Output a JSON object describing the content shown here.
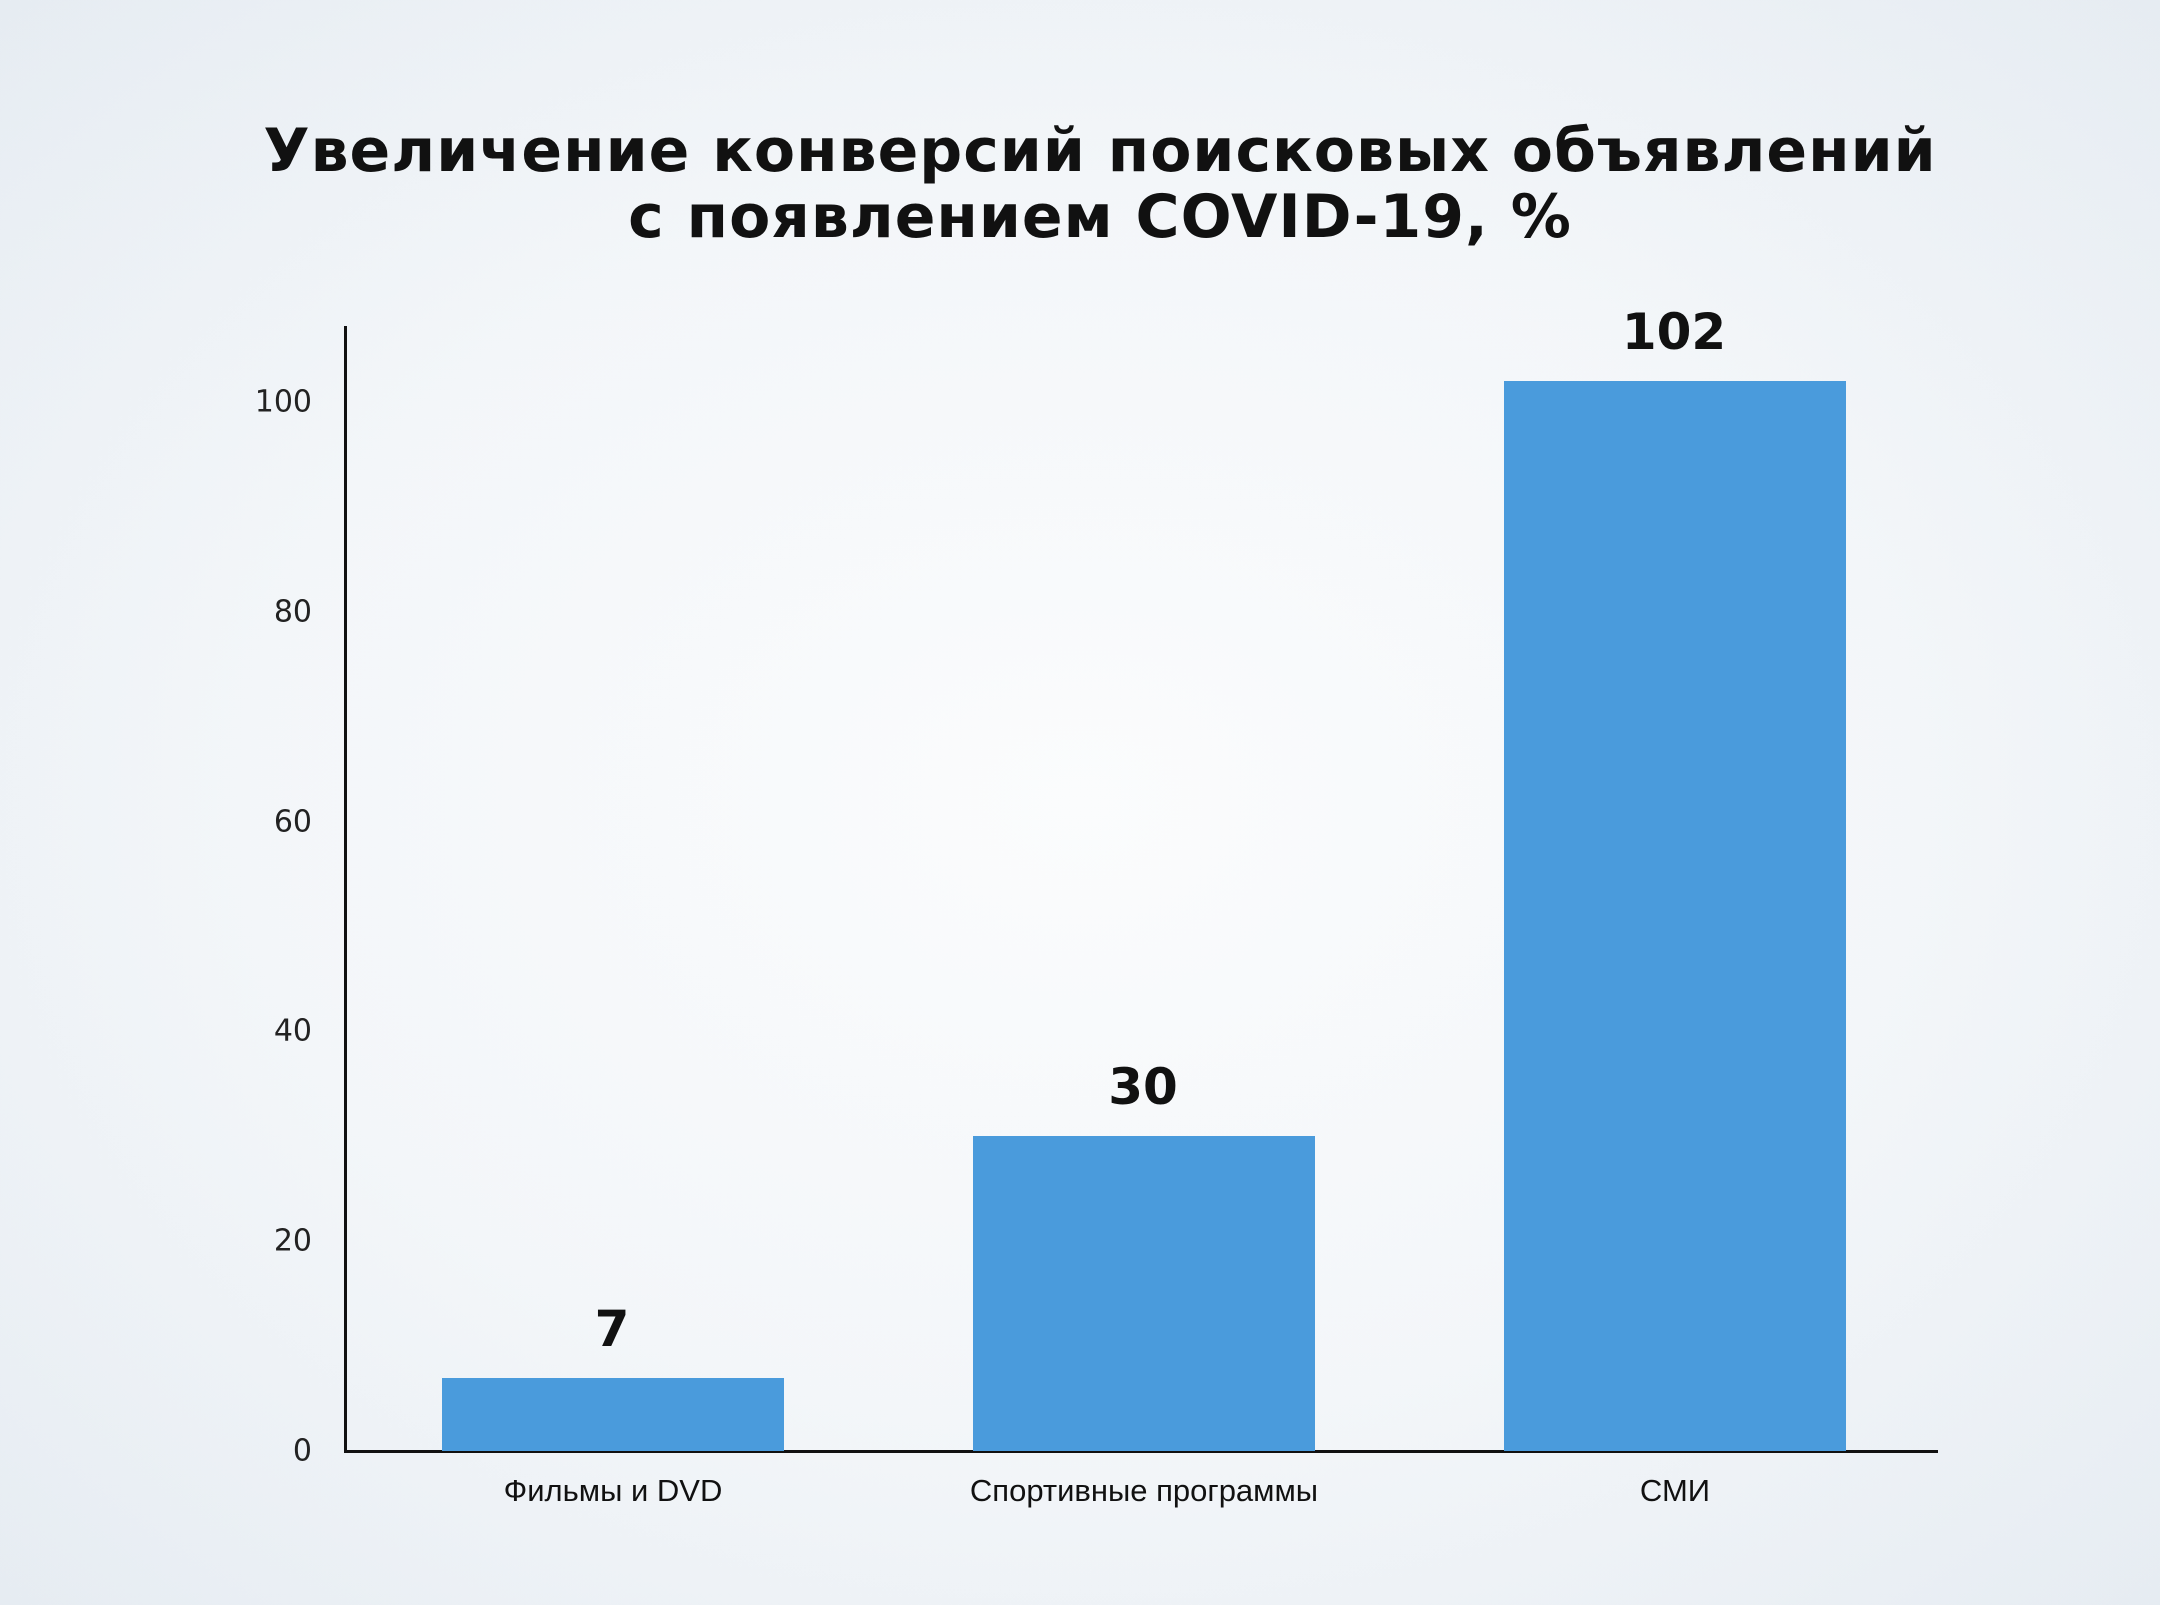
{
  "title_line1": "Увеличение конверсий поисковых объявлений",
  "title_line2": "с появлением COVID-19, %",
  "colors": {
    "bar": "#4A9BDC",
    "axis": "#111111",
    "text": "#111111"
  },
  "chart_data": {
    "type": "bar",
    "title": "Увеличение конверсий поисковых объявлений с появлением COVID-19, %",
    "xlabel": "",
    "ylabel": "",
    "categories": [
      "Фильмы и DVD",
      "Спортивные программы",
      "СМИ"
    ],
    "values": [
      7,
      30,
      102
    ],
    "ylim": [
      0,
      105
    ],
    "yticks": [
      "0",
      "20",
      "40",
      "60",
      "80",
      "100"
    ],
    "grid": false,
    "legend": null,
    "data_labels": [
      "7",
      "30",
      "102"
    ]
  }
}
